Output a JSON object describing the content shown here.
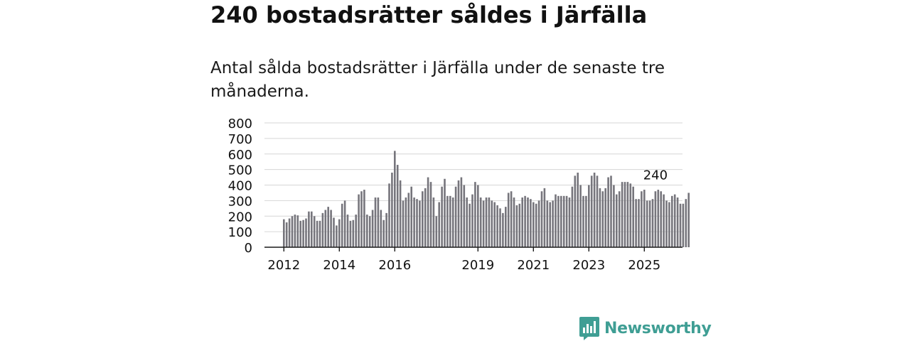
{
  "title": "240 bostadsrätter såldes i Järfälla",
  "subtitle": "Antal sålda bostadsrätter i Järfälla under de senaste tre månaderna.",
  "brand": {
    "name": "Newsworthy",
    "color": "#3f9e94"
  },
  "colors": {
    "bar": "#76757c",
    "highlight": "#2aa19a",
    "grid": "#d6d6d6",
    "axis": "#1a1a1a"
  },
  "chart_data": {
    "type": "bar",
    "title": "240 bostadsrätter såldes i Järfälla",
    "xlabel": "",
    "ylabel": "",
    "ylim": [
      0,
      800
    ],
    "yticks": [
      "0",
      "100",
      "200",
      "300",
      "400",
      "500",
      "600",
      "700",
      "800"
    ],
    "xticks": [
      {
        "label": "2012",
        "index": 0
      },
      {
        "label": "2014",
        "index": 20
      },
      {
        "label": "2016",
        "index": 40
      },
      {
        "label": "2019",
        "index": 70
      },
      {
        "label": "2021",
        "index": 90
      },
      {
        "label": "2023",
        "index": 110
      },
      {
        "label": "2025",
        "index": 130
      }
    ],
    "grid": true,
    "annotation": {
      "label": "240",
      "index": 134
    },
    "values": [
      180,
      160,
      185,
      200,
      210,
      205,
      170,
      175,
      185,
      230,
      230,
      200,
      170,
      170,
      220,
      240,
      260,
      240,
      190,
      140,
      180,
      280,
      300,
      210,
      170,
      175,
      210,
      340,
      360,
      370,
      210,
      200,
      240,
      320,
      320,
      240,
      175,
      220,
      410,
      480,
      620,
      530,
      430,
      300,
      320,
      350,
      390,
      320,
      310,
      300,
      360,
      380,
      450,
      420,
      320,
      200,
      290,
      390,
      440,
      330,
      330,
      320,
      390,
      430,
      450,
      400,
      320,
      280,
      340,
      420,
      400,
      320,
      300,
      320,
      320,
      300,
      290,
      270,
      250,
      220,
      260,
      350,
      360,
      320,
      270,
      280,
      320,
      330,
      320,
      310,
      290,
      280,
      300,
      360,
      380,
      300,
      290,
      300,
      340,
      330,
      330,
      330,
      330,
      320,
      390,
      460,
      480,
      400,
      330,
      330,
      400,
      460,
      480,
      460,
      380,
      360,
      380,
      450,
      460,
      400,
      340,
      360,
      420,
      420,
      420,
      410,
      390,
      310,
      310,
      360,
      370,
      300,
      300,
      310,
      360,
      370,
      360,
      340,
      300,
      290,
      330,
      340,
      320,
      280,
      280,
      310,
      350,
      370,
      360,
      340,
      300,
      310,
      380,
      370,
      330,
      280,
      280,
      290,
      280,
      290,
      240
    ]
  }
}
